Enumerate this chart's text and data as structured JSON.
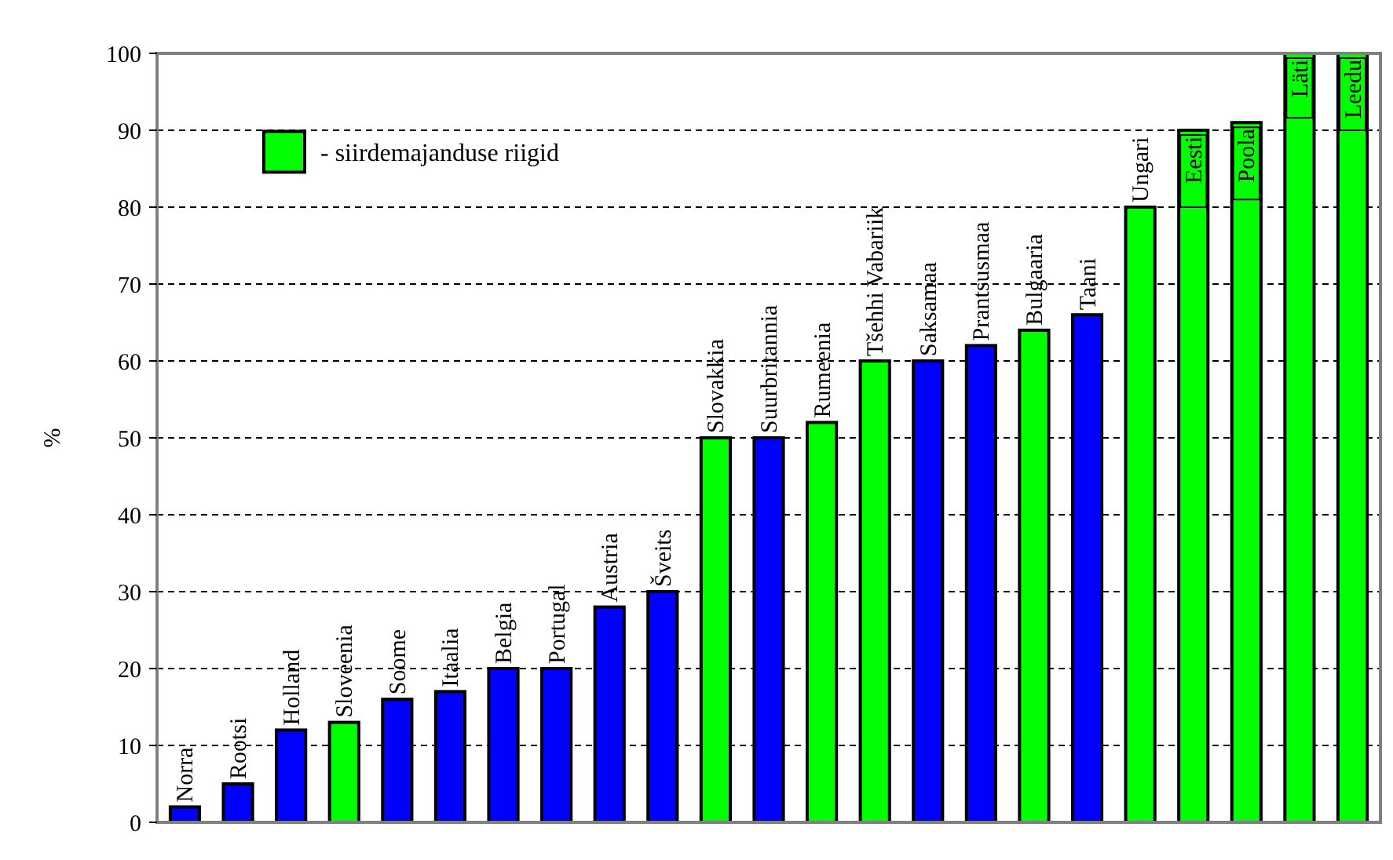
{
  "chart_data": {
    "type": "bar",
    "ylabel": "%",
    "categories": [
      "Norra",
      "Rootsi",
      "Holland",
      "Sloveenia",
      "Soome",
      "Itaalia",
      "Belgia",
      "Portugal",
      "Austria",
      "Šveits",
      "Slovakkia",
      "Suurbritannia",
      "Rumeenia",
      "Tšehhi Vabariik",
      "Saksamaa",
      "Prantsusmaa",
      "Bulgaaria",
      "Taani",
      "Ungari",
      "Eesti",
      "Poola",
      "Läti",
      "Leedu"
    ],
    "series": [
      {
        "color": "#0000ff",
        "values": [
          2,
          5,
          12,
          null,
          16,
          17,
          20,
          20,
          28,
          30,
          null,
          50,
          null,
          null,
          60,
          62,
          null,
          66,
          null,
          null,
          null,
          null,
          null
        ]
      },
      {
        "name": "- siirdemajanduse riigid",
        "color": "#00ff00",
        "values": [
          null,
          null,
          null,
          13,
          null,
          null,
          null,
          null,
          null,
          null,
          50,
          null,
          52,
          60,
          null,
          null,
          64,
          null,
          80,
          90,
          91,
          100,
          100
        ]
      }
    ],
    "ylim": [
      0,
      100
    ],
    "yticks": [
      0,
      10,
      20,
      30,
      40,
      50,
      60,
      70,
      80,
      90,
      100
    ],
    "grid": "y",
    "legend": "top left"
  }
}
